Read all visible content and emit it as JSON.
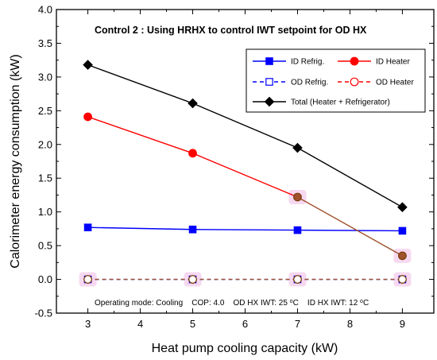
{
  "chart_data": {
    "type": "line",
    "title": "Control 2 : Using HRHX to control IWT setpoint for OD HX",
    "xlabel": "Heat pump cooling capacity (kW)",
    "ylabel": "Calorimeter energy consumption (kW)",
    "xlim": [
      2.4,
      9.6
    ],
    "ylim": [
      -0.5,
      4.0
    ],
    "x_ticks": [
      "3",
      "4",
      "5",
      "6",
      "7",
      "8",
      "9"
    ],
    "y_ticks": [
      "-0.5",
      "0.0",
      "0.5",
      "1.0",
      "1.5",
      "2.0",
      "2.5",
      "3.0",
      "3.5",
      "4.0"
    ],
    "x": [
      3,
      5,
      7,
      9
    ],
    "series": [
      {
        "name": "ID Refrig.",
        "values": [
          0.77,
          0.74,
          0.73,
          0.72
        ],
        "color": "#0000ff",
        "marker": "square-filled",
        "line": "solid"
      },
      {
        "name": "ID Heater",
        "values": [
          2.41,
          1.87,
          1.22,
          0.35
        ],
        "color": "#ff0000",
        "marker": "circle-filled",
        "line": "solid"
      },
      {
        "name": "OD Refrig.",
        "values": [
          0.0,
          0.0,
          0.0,
          0.0
        ],
        "color": "#0000ff",
        "marker": "square-open",
        "line": "dashed"
      },
      {
        "name": "OD Heater",
        "values": [
          0.0,
          0.0,
          0.0,
          0.0
        ],
        "color": "#ff0000",
        "marker": "circle-open",
        "line": "dashed"
      },
      {
        "name": "Total (Heater + Refrigerator)",
        "values": [
          3.18,
          2.61,
          1.95,
          1.07
        ],
        "color": "#000000",
        "marker": "diamond-filled",
        "line": "solid"
      }
    ],
    "legend_position": "top-right",
    "annotation": {
      "prefix": "Operating mode: Cooling    COP: 4.0    OD HX IWT: 25 ",
      "unit1_sup": "o",
      "unit1": "C",
      "middle": "    ID HX IWT: 12 ",
      "unit2_sup": "o",
      "unit2": "C"
    },
    "highlight_color": "#f6d9f0"
  }
}
